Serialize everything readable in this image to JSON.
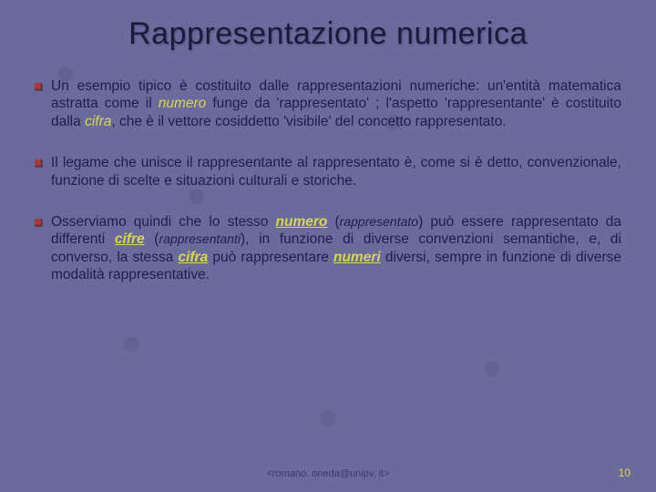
{
  "title": "Rappresentazione numerica",
  "bullets": [
    {
      "segments": [
        {
          "t": "Un esempio tipico è costituito dalle rappresentazioni numeriche: un'entità matematica astratta come il "
        },
        {
          "t": "numero",
          "cls": "em-yellow-i"
        },
        {
          "t": " funge da 'rappresentato' ; l'aspetto 'rappresentante' è costituito dalla "
        },
        {
          "t": "cifra",
          "cls": "em-yellow-i"
        },
        {
          "t": ", che è il vettore cosiddetto 'visibile' del concetto rappresentato."
        }
      ]
    },
    {
      "segments": [
        {
          "t": " Il legame che unisce il rappresentante al rappresentato è, come si è detto, convenzionale, funzione di scelte e situazioni culturali e storiche."
        }
      ]
    },
    {
      "segments": [
        {
          "t": "Osserviamo quindi che lo stesso "
        },
        {
          "t": "numero",
          "cls": "em-yellow-bi"
        },
        {
          "t": " ("
        },
        {
          "t": "rappresentato",
          "cls": "sub-i"
        },
        {
          "t": ") può essere rappresentato da differenti "
        },
        {
          "t": "cifre",
          "cls": "em-yellow-bi"
        },
        {
          "t": " ("
        },
        {
          "t": "rappresentanti",
          "cls": "sub-i"
        },
        {
          "t": "), in funzione di diverse convenzioni semantiche, e, di converso, la stessa "
        },
        {
          "t": "cifra",
          "cls": "em-yellow-bi"
        },
        {
          "t": " può rappresentare "
        },
        {
          "t": "numeri",
          "cls": "em-yellow-bi"
        },
        {
          "t": " diversi, sempre in funzione di diverse modalità rappresentative."
        }
      ]
    }
  ],
  "footer": {
    "email": "<romano. oneda@unipv. it>",
    "page": "10"
  },
  "colors": {
    "background": "#6a6a9c",
    "text": "#1e1e4a",
    "accent": "#d8d84a",
    "bullet": "#a83a3a"
  }
}
